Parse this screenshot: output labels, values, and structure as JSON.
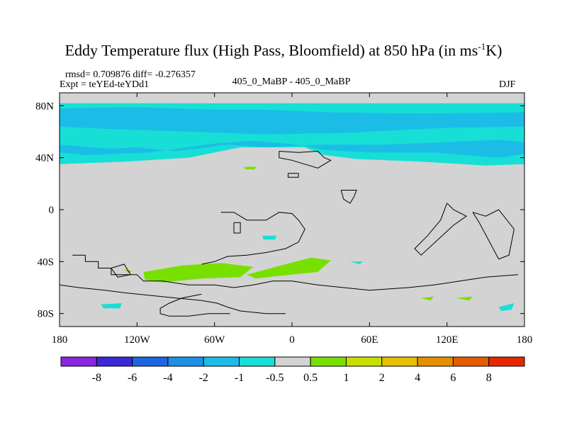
{
  "header": {
    "title_main": "Eddy Temperature flux (High Pass, Bloomfield) at 850 hPa (in ms",
    "title_sup": "-1",
    "title_end": "K)",
    "stats": "rmsd= 0.709876 diff= -0.276357",
    "expt": "Expt = teYEd-teYDd1",
    "comparison": "405_0_MaBP - 405_0_MaBP",
    "season": "DJF"
  },
  "colors": {
    "land_bg": "#d3d3d3",
    "coast": "#000000",
    "palette": [
      "#8d24e0",
      "#3b28d8",
      "#1e66e0",
      "#1e90e6",
      "#1bbde6",
      "#18dfd6",
      "#d3d3d3",
      "#78e000",
      "#c8e000",
      "#e6c000",
      "#e68e00",
      "#e65c00",
      "#e62800"
    ]
  },
  "chart_data": {
    "type": "heatmap",
    "title": "Eddy Temperature flux (High Pass, Bloomfield) at 850 hPa (in ms-1K)",
    "xlim": [
      -180,
      180
    ],
    "ylim": [
      -90,
      90
    ],
    "x_ticks": [
      {
        "value": -180,
        "label": "180"
      },
      {
        "value": -120,
        "label": "120W"
      },
      {
        "value": -60,
        "label": "60W"
      },
      {
        "value": 0,
        "label": "0"
      },
      {
        "value": 60,
        "label": "60E"
      },
      {
        "value": 120,
        "label": "120E"
      },
      {
        "value": 180,
        "label": "180"
      }
    ],
    "y_ticks": [
      {
        "value": 80,
        "label": "80N"
      },
      {
        "value": 40,
        "label": "40N"
      },
      {
        "value": 0,
        "label": "0"
      },
      {
        "value": -40,
        "label": "40S"
      },
      {
        "value": -80,
        "label": "80S"
      }
    ],
    "colorbar_labels": [
      "-8",
      "-6",
      "-4",
      "-2",
      "-1",
      "-0.5",
      "0.5",
      "1",
      "2",
      "4",
      "6",
      "8"
    ],
    "regions": [
      {
        "name": "nh-cyan-band",
        "level_index": 5,
        "points": [
          [
            -180,
            82
          ],
          [
            180,
            82
          ],
          [
            180,
            35
          ],
          [
            150,
            34
          ],
          [
            100,
            37
          ],
          [
            50,
            39
          ],
          [
            25,
            42
          ],
          [
            10,
            48
          ],
          [
            -40,
            48
          ],
          [
            -80,
            40
          ],
          [
            -130,
            37
          ],
          [
            -180,
            35
          ]
        ]
      },
      {
        "name": "nh-blue-strip-1",
        "level_index": 4,
        "points": [
          [
            -180,
            78
          ],
          [
            -120,
            79
          ],
          [
            -60,
            77
          ],
          [
            -20,
            77
          ],
          [
            30,
            75
          ],
          [
            100,
            74
          ],
          [
            180,
            75
          ],
          [
            180,
            64
          ],
          [
            120,
            63
          ],
          [
            40,
            59
          ],
          [
            -20,
            58
          ],
          [
            -80,
            60
          ],
          [
            -140,
            62
          ],
          [
            -180,
            64
          ]
        ]
      },
      {
        "name": "nh-blue-strip-2",
        "level_index": 4,
        "points": [
          [
            -180,
            50
          ],
          [
            -140,
            47
          ],
          [
            -120,
            48
          ],
          [
            -90,
            45
          ],
          [
            -50,
            50
          ],
          [
            -20,
            48
          ],
          [
            20,
            50
          ],
          [
            70,
            50
          ],
          [
            120,
            52
          ],
          [
            160,
            54
          ],
          [
            180,
            52
          ],
          [
            180,
            43
          ],
          [
            160,
            40
          ],
          [
            110,
            44
          ],
          [
            60,
            44
          ],
          [
            25,
            46
          ],
          [
            5,
            50
          ],
          [
            -30,
            53
          ],
          [
            -60,
            51
          ],
          [
            -110,
            44
          ],
          [
            -160,
            42
          ],
          [
            -180,
            44
          ]
        ]
      },
      {
        "name": "sh-green-1",
        "level_index": 7,
        "points": [
          [
            -115,
            -48
          ],
          [
            -85,
            -43
          ],
          [
            -55,
            -41
          ],
          [
            -30,
            -44
          ],
          [
            -40,
            -52
          ],
          [
            -70,
            -53
          ],
          [
            -100,
            -56
          ],
          [
            -114,
            -54
          ]
        ]
      },
      {
        "name": "sh-green-2",
        "level_index": 7,
        "points": [
          [
            -35,
            -50
          ],
          [
            -5,
            -42
          ],
          [
            15,
            -37
          ],
          [
            30,
            -39
          ],
          [
            20,
            -48
          ],
          [
            -10,
            -51
          ],
          [
            -28,
            -53
          ]
        ]
      },
      {
        "name": "sh-green-small-a",
        "level_index": 7,
        "points": [
          [
            -130,
            -46
          ],
          [
            -124,
            -47
          ],
          [
            -126,
            -49
          ]
        ]
      },
      {
        "name": "sh-green-small-b",
        "level_index": 7,
        "points": [
          [
            100,
            -68
          ],
          [
            110,
            -67
          ],
          [
            107,
            -70
          ]
        ]
      },
      {
        "name": "sh-green-small-c",
        "level_index": 7,
        "points": [
          [
            127,
            -68
          ],
          [
            140,
            -67
          ],
          [
            137,
            -70
          ]
        ]
      },
      {
        "name": "nh-green-blob",
        "level_index": 7,
        "points": [
          [
            -37,
            33
          ],
          [
            -28,
            33
          ],
          [
            -29,
            31
          ],
          [
            -36,
            31
          ]
        ]
      },
      {
        "name": "sh-cyan-blob-1",
        "level_index": 5,
        "points": [
          [
            -148,
            -73
          ],
          [
            -132,
            -72
          ],
          [
            -133,
            -76
          ],
          [
            -146,
            -76
          ]
        ]
      },
      {
        "name": "sh-cyan-blob-2",
        "level_index": 5,
        "points": [
          [
            -23,
            -20
          ],
          [
            -12,
            -20
          ],
          [
            -13,
            -23
          ],
          [
            -22,
            -23
          ]
        ]
      },
      {
        "name": "sh-cyan-blob-3",
        "level_index": 5,
        "points": [
          [
            160,
            -75
          ],
          [
            172,
            -72
          ],
          [
            170,
            -77
          ],
          [
            162,
            -78
          ]
        ]
      },
      {
        "name": "sh-cyan-blob-4",
        "level_index": 5,
        "points": [
          [
            45,
            -40
          ],
          [
            55,
            -40
          ],
          [
            52,
            -42
          ]
        ]
      }
    ],
    "coastlines": [
      [
        [
          -170,
          -35
        ],
        [
          -160,
          -35
        ],
        [
          -160,
          -40
        ],
        [
          -150,
          -40
        ],
        [
          -150,
          -45
        ],
        [
          -140,
          -45
        ],
        [
          -140,
          -50
        ],
        [
          -120,
          -50
        ],
        [
          -115,
          -55
        ],
        [
          -100,
          -55
        ],
        [
          -80,
          -58
        ],
        [
          -60,
          -58
        ],
        [
          -45,
          -60
        ],
        [
          -30,
          -58
        ],
        [
          -15,
          -55
        ],
        [
          0,
          -55
        ],
        [
          20,
          -58
        ],
        [
          40,
          -60
        ],
        [
          60,
          -62
        ],
        [
          90,
          -60
        ],
        [
          110,
          -58
        ],
        [
          130,
          -55
        ],
        [
          150,
          -52
        ],
        [
          175,
          -50
        ]
      ],
      [
        [
          -180,
          -58
        ],
        [
          -165,
          -60
        ],
        [
          -145,
          -62
        ],
        [
          -130,
          -64
        ],
        [
          -110,
          -66
        ],
        [
          -90,
          -68
        ],
        [
          -70,
          -70
        ],
        [
          -58,
          -72
        ],
        [
          -50,
          -75
        ],
        [
          -40,
          -78
        ],
        [
          -20,
          -80
        ],
        [
          -5,
          -80
        ]
      ],
      [
        [
          -48,
          -80
        ],
        [
          -65,
          -80
        ],
        [
          -80,
          -82
        ],
        [
          -95,
          -82
        ],
        [
          -102,
          -80
        ],
        [
          -102,
          -76
        ],
        [
          -95,
          -72
        ],
        [
          -85,
          -68
        ],
        [
          -70,
          -65
        ]
      ],
      [
        [
          -55,
          -2
        ],
        [
          -45,
          -2
        ],
        [
          -35,
          -8
        ],
        [
          -20,
          -8
        ],
        [
          -10,
          -2
        ],
        [
          0,
          -3
        ],
        [
          5,
          -8
        ],
        [
          10,
          -15
        ],
        [
          5,
          -25
        ],
        [
          -5,
          -30
        ],
        [
          -20,
          -33
        ],
        [
          -35,
          -35
        ],
        [
          -50,
          -36
        ],
        [
          -60,
          -40
        ],
        [
          -70,
          -42
        ]
      ],
      [
        [
          -45,
          -10
        ],
        [
          -40,
          -10
        ],
        [
          -40,
          -18
        ],
        [
          -45,
          -18
        ],
        [
          -45,
          -10
        ]
      ],
      [
        [
          -10,
          45
        ],
        [
          5,
          44
        ],
        [
          20,
          45
        ],
        [
          25,
          40
        ],
        [
          30,
          38
        ],
        [
          20,
          32
        ],
        [
          10,
          35
        ],
        [
          0,
          38
        ],
        [
          -10,
          40
        ],
        [
          -10,
          45
        ]
      ],
      [
        [
          -3,
          28
        ],
        [
          5,
          28
        ],
        [
          5,
          25
        ],
        [
          -3,
          25
        ],
        [
          -3,
          28
        ]
      ],
      [
        [
          38,
          15
        ],
        [
          50,
          15
        ],
        [
          48,
          10
        ],
        [
          45,
          5
        ],
        [
          40,
          8
        ],
        [
          38,
          15
        ]
      ],
      [
        [
          120,
          5
        ],
        [
          125,
          0
        ],
        [
          135,
          -5
        ],
        [
          125,
          -12
        ],
        [
          100,
          -35
        ],
        [
          95,
          -30
        ],
        [
          105,
          -20
        ],
        [
          115,
          -8
        ],
        [
          120,
          5
        ]
      ],
      [
        [
          140,
          -2
        ],
        [
          150,
          -5
        ],
        [
          160,
          0
        ],
        [
          172,
          -15
        ],
        [
          168,
          -35
        ],
        [
          160,
          -38
        ],
        [
          145,
          -10
        ],
        [
          140,
          -2
        ]
      ],
      [
        [
          -140,
          -45
        ],
        [
          -130,
          -42
        ],
        [
          -125,
          -50
        ],
        [
          -135,
          -52
        ],
        [
          -140,
          -45
        ]
      ]
    ]
  }
}
